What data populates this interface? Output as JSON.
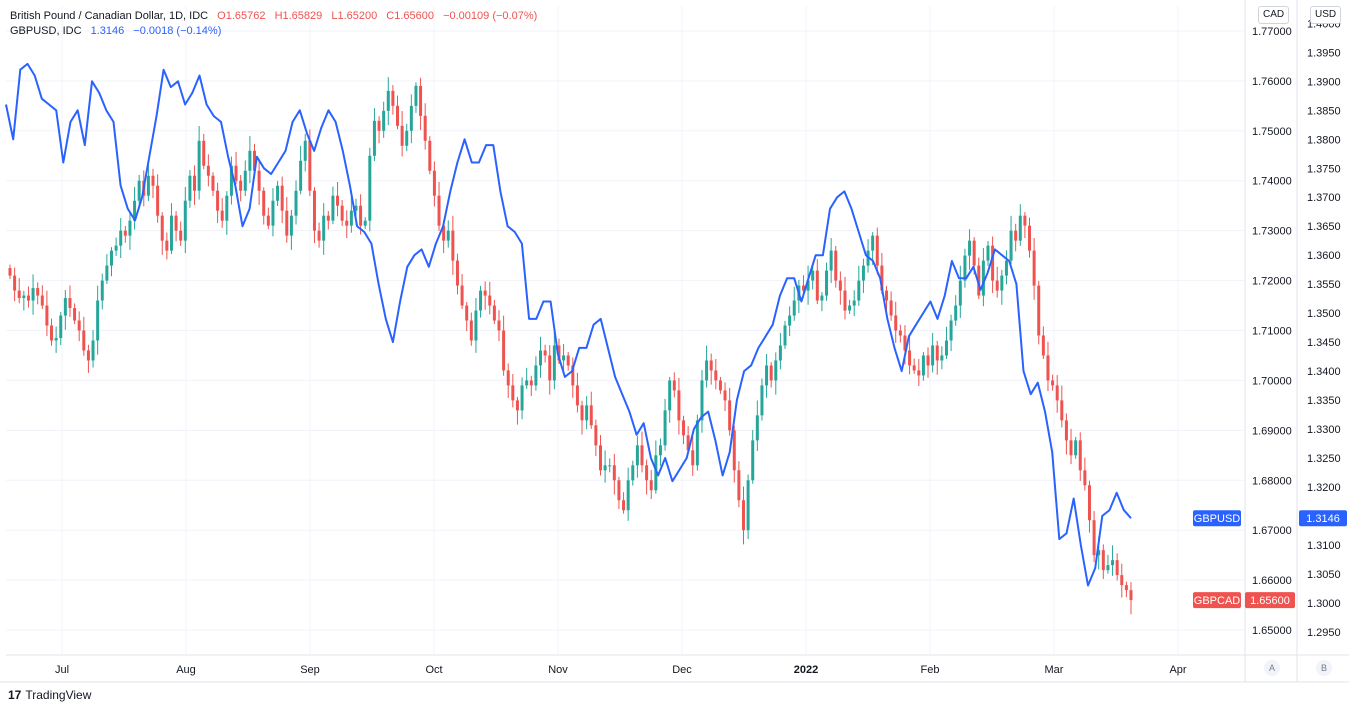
{
  "legend": {
    "gbpcad": {
      "name": "British Pound / Canadian Dollar, 1D, IDC",
      "o": "O1.65762",
      "h": "H1.65829",
      "l": "L1.65200",
      "c": "C1.65600",
      "chg": "−0.00109 (−0.07%)"
    },
    "gbpusd": {
      "name": "GBPUSD, IDC",
      "last": "1.3146",
      "chg": "−0.0018 (−0.14%)"
    }
  },
  "scales": {
    "left_unit": "CAD",
    "right_unit": "USD",
    "cad_ticks": [
      "1.77000",
      "1.76000",
      "1.75000",
      "1.74000",
      "1.73000",
      "1.72000",
      "1.71000",
      "1.70000",
      "1.69000",
      "1.68000",
      "1.67000",
      "1.66000",
      "1.65000"
    ],
    "usd_ticks": [
      "1.4000",
      "1.3950",
      "1.3900",
      "1.3850",
      "1.3800",
      "1.3750",
      "1.3700",
      "1.3650",
      "1.3600",
      "1.3550",
      "1.3500",
      "1.3450",
      "1.3400",
      "1.3350",
      "1.3300",
      "1.3250",
      "1.3200",
      "1.3150",
      "1.3100",
      "1.3050",
      "1.3000",
      "1.2950"
    ]
  },
  "tags": {
    "gbpusd_label": "GBPUSD",
    "gbpusd_value": "1.3146",
    "gbpcad_label": "GBPCAD",
    "gbpcad_value": "1.65600"
  },
  "bottom": {
    "a": "A",
    "b": "B"
  },
  "brand": "TradingView",
  "colors": {
    "up": "#26a69a",
    "down": "#ef5350",
    "line": "#2962ff",
    "grid": "#f0f3fa"
  },
  "chart_data": {
    "type": "line",
    "x_axis": [
      "Jul",
      "Aug",
      "Sep",
      "Oct",
      "Nov",
      "Dec",
      "2022",
      "Feb",
      "Mar",
      "Apr"
    ],
    "series": [
      {
        "name": "GBPCAD",
        "kind": "candlestick",
        "axis": "CAD",
        "close": [
          1.721,
          1.718,
          1.7165,
          1.717,
          1.716,
          1.7185,
          1.717,
          1.715,
          1.711,
          1.708,
          1.7085,
          1.713,
          1.7165,
          1.7145,
          1.712,
          1.71,
          1.706,
          1.704,
          1.708,
          1.716,
          1.72,
          1.723,
          1.726,
          1.727,
          1.73,
          1.729,
          1.732,
          1.736,
          1.74,
          1.737,
          1.741,
          1.739,
          1.733,
          1.728,
          1.726,
          1.733,
          1.73,
          1.728,
          1.736,
          1.741,
          1.738,
          1.748,
          1.743,
          1.741,
          1.738,
          1.734,
          1.732,
          1.737,
          1.743,
          1.74,
          1.738,
          1.742,
          1.746,
          1.742,
          1.738,
          1.733,
          1.731,
          1.736,
          1.739,
          1.734,
          1.729,
          1.733,
          1.738,
          1.744,
          1.748,
          1.738,
          1.73,
          1.728,
          1.733,
          1.732,
          1.737,
          1.735,
          1.732,
          1.731,
          1.734,
          1.735,
          1.731,
          1.732,
          1.745,
          1.752,
          1.75,
          1.754,
          1.758,
          1.755,
          1.751,
          1.747,
          1.75,
          1.755,
          1.759,
          1.753,
          1.748,
          1.742,
          1.737,
          1.731,
          1.728,
          1.73,
          1.724,
          1.719,
          1.715,
          1.712,
          1.708,
          1.714,
          1.718,
          1.717,
          1.715,
          1.712,
          1.71,
          1.702,
          1.699,
          1.696,
          1.694,
          1.699,
          1.7,
          1.699,
          1.703,
          1.706,
          1.705,
          1.7,
          1.707,
          1.704,
          1.705,
          1.703,
          1.699,
          1.695,
          1.692,
          1.695,
          1.691,
          1.687,
          1.682,
          1.683,
          1.683,
          1.68,
          1.676,
          1.674,
          1.68,
          1.683,
          1.687,
          1.683,
          1.68,
          1.678,
          1.685,
          1.687,
          1.694,
          1.7,
          1.698,
          1.692,
          1.689,
          1.686,
          1.683,
          1.692,
          1.7,
          1.704,
          1.702,
          1.7,
          1.698,
          1.696,
          1.69,
          1.682,
          1.676,
          1.67,
          1.68,
          1.688,
          1.693,
          1.699,
          1.703,
          1.7,
          1.704,
          1.707,
          1.711,
          1.713,
          1.716,
          1.719,
          1.718,
          1.72,
          1.722,
          1.716,
          1.717,
          1.722,
          1.726,
          1.72,
          1.718,
          1.714,
          1.715,
          1.716,
          1.72,
          1.723,
          1.726,
          1.729,
          1.723,
          1.718,
          1.716,
          1.713,
          1.71,
          1.709,
          1.706,
          1.703,
          1.702,
          1.701,
          1.705,
          1.703,
          1.707,
          1.704,
          1.705,
          1.708,
          1.712,
          1.715,
          1.72,
          1.725,
          1.728,
          1.723,
          1.717,
          1.724,
          1.727,
          1.72,
          1.718,
          1.721,
          1.724,
          1.73,
          1.728,
          1.733,
          1.731,
          1.726,
          1.719,
          1.709,
          1.705,
          1.7,
          1.699,
          1.696,
          1.692,
          1.688,
          1.685,
          1.688,
          1.682,
          1.679,
          1.672,
          1.665,
          1.666,
          1.662,
          1.663,
          1.664,
          1.661,
          1.659,
          1.658,
          1.656
        ],
        "last": 1.656
      },
      {
        "name": "GBPUSD",
        "kind": "line",
        "axis": "USD",
        "values": [
          1.386,
          1.38,
          1.392,
          1.393,
          1.391,
          1.387,
          1.386,
          1.385,
          1.376,
          1.383,
          1.385,
          1.379,
          1.39,
          1.388,
          1.385,
          1.383,
          1.372,
          1.368,
          1.366,
          1.37,
          1.377,
          1.384,
          1.392,
          1.389,
          1.39,
          1.386,
          1.388,
          1.391,
          1.386,
          1.384,
          1.383,
          1.377,
          1.372,
          1.365,
          1.368,
          1.377,
          1.375,
          1.374,
          1.376,
          1.378,
          1.383,
          1.385,
          1.381,
          1.378,
          1.382,
          1.385,
          1.383,
          1.378,
          1.372,
          1.365,
          1.364,
          1.362,
          1.355,
          1.349,
          1.345,
          1.352,
          1.358,
          1.36,
          1.361,
          1.358,
          1.362,
          1.365,
          1.371,
          1.376,
          1.38,
          1.376,
          1.376,
          1.379,
          1.379,
          1.371,
          1.365,
          1.364,
          1.362,
          1.349,
          1.349,
          1.352,
          1.352,
          1.343,
          1.339,
          1.34,
          1.344,
          1.344,
          1.348,
          1.349,
          1.344,
          1.339,
          1.336,
          1.333,
          1.329,
          1.331,
          1.325,
          1.322,
          1.325,
          1.321,
          1.323,
          1.325,
          1.33,
          1.332,
          1.333,
          1.328,
          1.322,
          1.326,
          1.335,
          1.34,
          1.341,
          1.344,
          1.346,
          1.348,
          1.353,
          1.356,
          1.356,
          1.352,
          1.356,
          1.36,
          1.36,
          1.368,
          1.37,
          1.371,
          1.368,
          1.364,
          1.36,
          1.359,
          1.356,
          1.349,
          1.344,
          1.34,
          1.346,
          1.348,
          1.35,
          1.352,
          1.349,
          1.353,
          1.359,
          1.356,
          1.356,
          1.358,
          1.354,
          1.357,
          1.361,
          1.36,
          1.359,
          1.355,
          1.34,
          1.336,
          1.338,
          1.333,
          1.326,
          1.311,
          1.312,
          1.318,
          1.31,
          1.303,
          1.306,
          1.315,
          1.316,
          1.319,
          1.316,
          1.3146
        ],
        "last": 1.3146
      }
    ],
    "ylim_left": [
      1.645,
      1.775
    ],
    "ylim_right": [
      1.291,
      1.403
    ],
    "grid": true,
    "legend_position": "top-left"
  }
}
